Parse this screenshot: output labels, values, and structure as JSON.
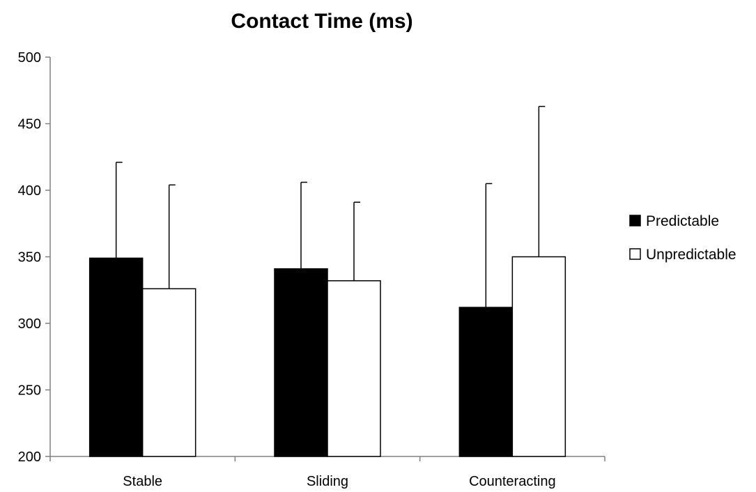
{
  "chart_data": {
    "type": "bar",
    "title": "Contact Time (ms)",
    "xlabel": "",
    "ylabel": "",
    "categories": [
      "Stable",
      "Sliding",
      "Counteracting"
    ],
    "series": [
      {
        "name": "Predictable",
        "values": [
          349,
          341,
          312
        ],
        "error_upper": [
          421,
          406,
          405
        ],
        "color": "#000000"
      },
      {
        "name": "Unpredictable",
        "values": [
          326,
          332,
          350
        ],
        "error_upper": [
          404,
          391,
          463
        ],
        "color": "#ffffff"
      }
    ],
    "ylim": [
      200,
      500
    ],
    "yticks": [
      200,
      250,
      300,
      350,
      400,
      450,
      500
    ],
    "grid": false,
    "legend_position": "right"
  }
}
